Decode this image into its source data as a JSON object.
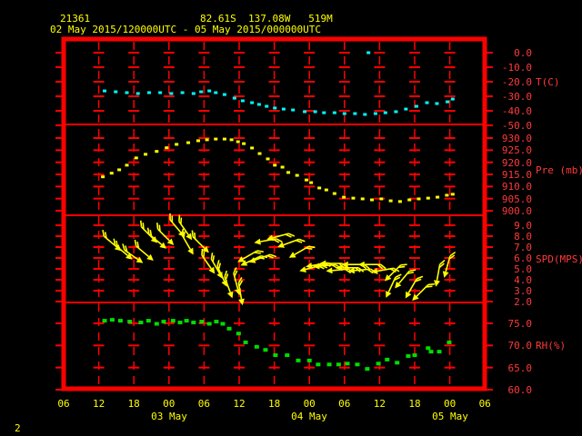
{
  "page": {
    "background": "#000000",
    "page_number": "2"
  },
  "header": {
    "station_id": "21361",
    "location": "82.61S  137.08W   519M",
    "time_range": "02 May 2015/120000UTC - 05 May 2015/000000UTC"
  },
  "colors": {
    "frame": "#ff0000",
    "grid": "#ff0000",
    "axis_text": "#ff3a3a",
    "header_text": "#ffff00",
    "temperature": "#00ffff",
    "pressure": "#ffff00",
    "wind": "#ffff00",
    "humidity": "#00dd00"
  },
  "chart_data": {
    "type": "line",
    "title": "02 May 2015/120000UTC - 05 May 2015/000000UTC",
    "station": {
      "id": "21361",
      "lat": "82.61S",
      "lon": "137.08W",
      "elev": "519M"
    },
    "x_axis": {
      "description": "time, hours since 02 May 2015 06UTC; frame spans 72 h (06UTC 02 May - 06UTC 05 May)",
      "hours_span": 72,
      "tick_step_hours": 6,
      "hour_labels": [
        "06",
        "12",
        "18",
        "00",
        "06",
        "12",
        "18",
        "00",
        "06",
        "12",
        "18",
        "00",
        "06"
      ],
      "day_labels": [
        "03 May",
        "04 May",
        "05 May"
      ],
      "grid": "dashed-red-with-crosses"
    },
    "panels": [
      {
        "id": "temperature",
        "unit_label": "T(C)",
        "marker": "dot",
        "color": "#00ffff",
        "tick_labels": [
          "0.0",
          "-10.0",
          "-20.0",
          "-30.0",
          "-40.0",
          "-50.0"
        ],
        "tick_values": [
          0,
          -10,
          -20,
          -30,
          -40,
          -50
        ],
        "series": [
          [
            7,
            -26.3
          ],
          [
            8.9,
            -26.9
          ],
          [
            10.8,
            -27.5
          ],
          [
            12.7,
            -28.1
          ],
          [
            14.6,
            -27.5
          ],
          [
            16.5,
            -27.5
          ],
          [
            18.4,
            -28.1
          ],
          [
            20.3,
            -27.5
          ],
          [
            22.2,
            -28.1
          ],
          [
            23.5,
            -26.9
          ],
          [
            24.9,
            -26.3
          ],
          [
            26,
            -27.5
          ],
          [
            27.5,
            -28.8
          ],
          [
            29.2,
            -31.3
          ],
          [
            30.6,
            -33.1
          ],
          [
            32.2,
            -34.4
          ],
          [
            33.4,
            -35.6
          ],
          [
            34.7,
            -36.9
          ],
          [
            36.1,
            -38.1
          ],
          [
            37.6,
            -38.8
          ],
          [
            39.2,
            -39.4
          ],
          [
            41.2,
            -40.6
          ],
          [
            43,
            -40.6
          ],
          [
            44.5,
            -41.3
          ],
          [
            46.3,
            -41.3
          ],
          [
            48,
            -41.9
          ],
          [
            49.8,
            -41.9
          ],
          [
            51.5,
            -42.5
          ],
          [
            53.3,
            -41.9
          ],
          [
            55,
            -41.3
          ],
          [
            56.8,
            -40.6
          ],
          [
            58.5,
            -38.8
          ],
          [
            60.3,
            -36.9
          ],
          [
            62.1,
            -34.4
          ],
          [
            63.8,
            -35
          ],
          [
            65.6,
            -33.8
          ],
          [
            66.5,
            -31.9
          ]
        ],
        "outliers": [
          [
            52.1,
            0.0
          ]
        ]
      },
      {
        "id": "pressure",
        "unit_label": "Pre (mb)",
        "marker": "dot",
        "color": "#ffff00",
        "tick_labels": [
          "930.0",
          "925.0",
          "920.0",
          "915.0",
          "910.0",
          "905.0",
          "900.0"
        ],
        "tick_values": [
          930,
          925,
          920,
          915,
          910,
          905,
          900
        ],
        "series": [
          [
            6.7,
            914
          ],
          [
            8.2,
            915.5
          ],
          [
            9.5,
            916.9
          ],
          [
            10.8,
            918.8
          ],
          [
            12.4,
            921.8
          ],
          [
            14,
            923.3
          ],
          [
            15.9,
            924.5
          ],
          [
            17.6,
            926
          ],
          [
            19.3,
            927.4
          ],
          [
            21.3,
            928.1
          ],
          [
            23,
            928.9
          ],
          [
            24.5,
            929.3
          ],
          [
            26,
            929.6
          ],
          [
            27.5,
            929.6
          ],
          [
            28.7,
            929.3
          ],
          [
            29.8,
            928.5
          ],
          [
            30.8,
            927.7
          ],
          [
            32.2,
            925.9
          ],
          [
            33.5,
            923.6
          ],
          [
            34.9,
            921.4
          ],
          [
            36.1,
            918.8
          ],
          [
            37.4,
            918
          ],
          [
            38.4,
            915.8
          ],
          [
            39.9,
            914.6
          ],
          [
            41.5,
            912.7
          ],
          [
            42.3,
            911.6
          ],
          [
            43.7,
            909.4
          ],
          [
            44.9,
            908.6
          ],
          [
            46.3,
            907.1
          ],
          [
            47.9,
            905.6
          ],
          [
            49.5,
            905.2
          ],
          [
            51.1,
            904.9
          ],
          [
            52.7,
            904.5
          ],
          [
            54.3,
            904.9
          ],
          [
            55.9,
            904.1
          ],
          [
            57.5,
            903.8
          ],
          [
            59.1,
            904.5
          ],
          [
            60.7,
            904.9
          ],
          [
            62.3,
            905.2
          ],
          [
            63.9,
            905.6
          ],
          [
            65.5,
            906.4
          ],
          [
            66.5,
            906.8
          ]
        ],
        "outliers": []
      },
      {
        "id": "wind_speed",
        "unit_label": "SPD(MPS)",
        "marker": "arrow",
        "color": "#ffff00",
        "tick_labels": [
          "9.0",
          "8.0",
          "7.0",
          "6.0",
          "5.0",
          "4.0",
          "3.0",
          "2.0"
        ],
        "tick_values": [
          9,
          8,
          7,
          6,
          5,
          4,
          3,
          2
        ],
        "arrows_note": "[t_hours, speed_mps, screen_rotation_deg (0=east, 90=down/south)]",
        "arrows": [
          [
            8.2,
            7.4,
            40
          ],
          [
            10.1,
            6.6,
            40
          ],
          [
            11.8,
            6.2,
            35
          ],
          [
            13.7,
            6.5,
            40
          ],
          [
            14.5,
            8.2,
            45
          ],
          [
            15.9,
            7.6,
            40
          ],
          [
            17.3,
            8.0,
            45
          ],
          [
            19.3,
            8.8,
            50
          ],
          [
            20.7,
            8.6,
            55
          ],
          [
            21.1,
            7.3,
            60
          ],
          [
            23.3,
            7.3,
            45
          ],
          [
            24.6,
            5.5,
            55
          ],
          [
            26.1,
            5.1,
            60
          ],
          [
            27,
            4.4,
            65
          ],
          [
            28.1,
            3.4,
            70
          ],
          [
            29.5,
            3.7,
            75
          ],
          [
            30.2,
            2.8,
            80
          ],
          [
            31.6,
            6.2,
            150
          ],
          [
            32.2,
            5.8,
            155
          ],
          [
            33.7,
            6.0,
            160
          ],
          [
            34.7,
            7.6,
            170
          ],
          [
            36.8,
            8.0,
            165
          ],
          [
            38.6,
            7.4,
            160
          ],
          [
            40.4,
            6.6,
            150
          ],
          [
            42.4,
            5.1,
            165
          ],
          [
            43.5,
            5.4,
            170
          ],
          [
            44.8,
            5.3,
            175
          ],
          [
            45.9,
            5.5,
            180
          ],
          [
            47,
            4.9,
            175
          ],
          [
            48.7,
            5.1,
            180
          ],
          [
            49.7,
            5.4,
            180
          ],
          [
            50.8,
            4.9,
            175
          ],
          [
            52.5,
            5.4,
            180
          ],
          [
            54.7,
            4.9,
            170
          ],
          [
            56,
            3.4,
            115
          ],
          [
            56.4,
            4.7,
            135
          ],
          [
            58,
            4.1,
            130
          ],
          [
            59.5,
            3.3,
            120
          ],
          [
            61.1,
            2.9,
            135
          ],
          [
            64,
            4.5,
            100
          ],
          [
            65.6,
            5.3,
            105
          ]
        ]
      },
      {
        "id": "humidity",
        "unit_label": "RH(%)",
        "marker": "dot",
        "color": "#00dd00",
        "tick_labels": [
          "75.0",
          "70.0",
          "65.0",
          "60.0"
        ],
        "tick_values": [
          75,
          70,
          65,
          60
        ],
        "series": [
          [
            7,
            75.6
          ],
          [
            8.3,
            75.8
          ],
          [
            9.7,
            75.6
          ],
          [
            11.3,
            75.4
          ],
          [
            13.2,
            75.2
          ],
          [
            14.5,
            75.6
          ],
          [
            15.9,
            74.9
          ],
          [
            17.1,
            75.4
          ],
          [
            18.7,
            75.6
          ],
          [
            19.9,
            75.2
          ],
          [
            21,
            75.6
          ],
          [
            22.2,
            75.2
          ],
          [
            23.6,
            75.4
          ],
          [
            24.9,
            74.9
          ],
          [
            26.1,
            75.4
          ],
          [
            27.2,
            74.9
          ],
          [
            28.3,
            73.8
          ],
          [
            29.9,
            72.7
          ],
          [
            31.1,
            70.7
          ],
          [
            33,
            69.7
          ],
          [
            34.5,
            69
          ],
          [
            36.2,
            67.8
          ],
          [
            38.2,
            67.8
          ],
          [
            40.1,
            66.6
          ],
          [
            42,
            66.6
          ],
          [
            43.5,
            65.7
          ],
          [
            45.4,
            65.7
          ],
          [
            47,
            65.7
          ],
          [
            48.5,
            65.9
          ],
          [
            50.2,
            65.7
          ],
          [
            51.9,
            64.7
          ],
          [
            53.8,
            65.9
          ],
          [
            55.3,
            66.8
          ],
          [
            57,
            66.1
          ],
          [
            58.9,
            67.6
          ],
          [
            60,
            67.8
          ],
          [
            62.3,
            69.4
          ],
          [
            62.8,
            68.6
          ],
          [
            64.2,
            68.6
          ],
          [
            65.9,
            70.7
          ]
        ],
        "outliers": []
      }
    ]
  }
}
